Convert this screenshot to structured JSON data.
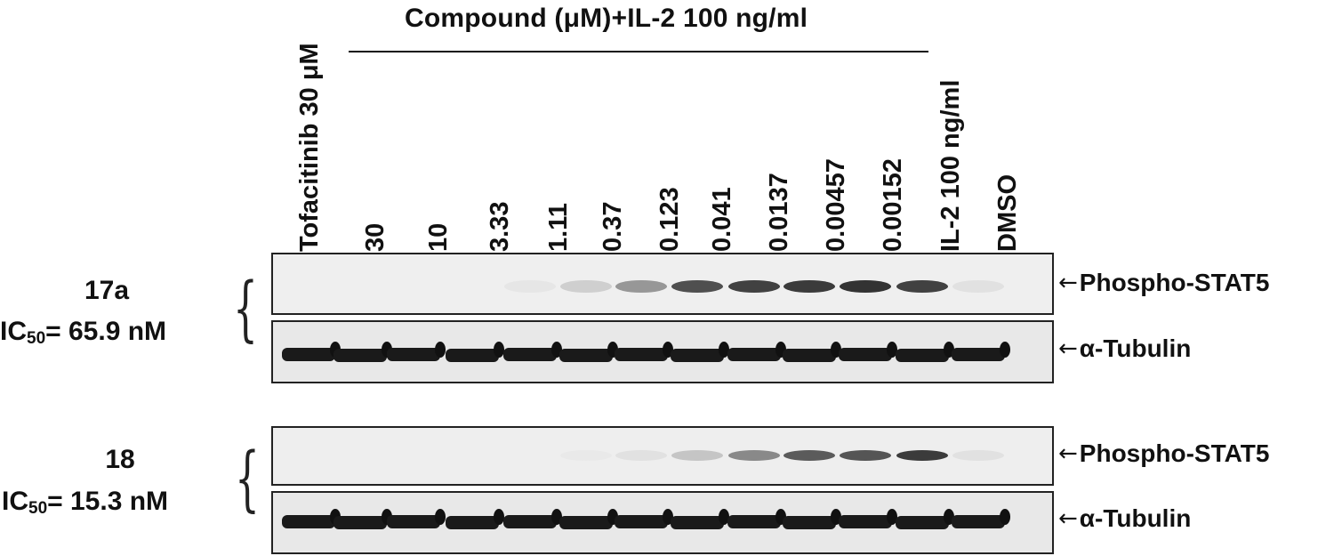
{
  "header": {
    "title": "Compound (μM)+IL-2 100 ng/ml"
  },
  "lanes": [
    {
      "label": "Tofacitinib 30 μM"
    },
    {
      "label": "30"
    },
    {
      "label": "10"
    },
    {
      "label": "3.33"
    },
    {
      "label": "1.11"
    },
    {
      "label": "0.37"
    },
    {
      "label": "0.123"
    },
    {
      "label": "0.041"
    },
    {
      "label": "0.0137"
    },
    {
      "label": "0.00457"
    },
    {
      "label": "0.00152"
    },
    {
      "label": "IL-2 100 ng/ml"
    },
    {
      "label": "DMSO"
    }
  ],
  "compounds": [
    {
      "name": "17a",
      "ic50_prefix": "IC",
      "ic50_sub": "50",
      "ic50_value": "= 65.9 nM"
    },
    {
      "name": "18",
      "ic50_prefix": "IC",
      "ic50_sub": "50",
      "ic50_value": "= 15.3 nM"
    }
  ],
  "markers": {
    "phospho": "Phospho-STAT5",
    "tubulin": "α-Tubulin",
    "arrow": "←"
  },
  "band_intensity": {
    "17a_phospho_stat5": [
      0.0,
      0.0,
      0.0,
      0.0,
      0.08,
      0.25,
      0.5,
      0.78,
      0.85,
      0.88,
      0.92,
      0.85,
      0.12
    ],
    "18_phospho_stat5": [
      0.0,
      0.0,
      0.0,
      0.0,
      0.0,
      0.04,
      0.12,
      0.3,
      0.55,
      0.72,
      0.75,
      0.88,
      0.12
    ],
    "17a_tubulin": [
      1,
      1,
      1,
      1,
      1,
      1,
      1,
      1,
      1,
      1,
      1,
      1,
      1
    ],
    "18_tubulin": [
      1,
      1,
      1,
      1,
      1,
      1,
      1,
      1,
      1,
      1,
      1,
      1,
      1
    ]
  }
}
